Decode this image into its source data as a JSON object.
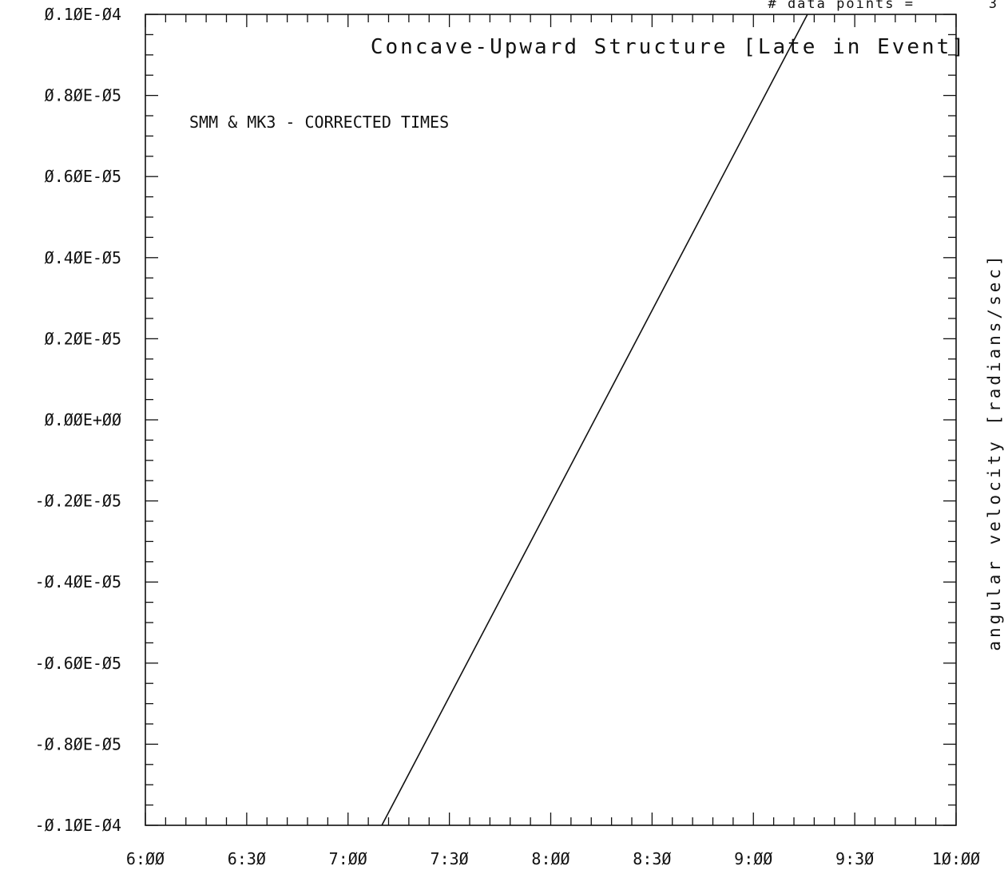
{
  "chart_data": {
    "type": "line",
    "title": "Concave-Upward Structure [Late in Event]",
    "annotation": "SMM & MK3 - CORRECTED TIMES",
    "data_points_label": "# data points =",
    "data_points_value": "3",
    "xlabel": "",
    "ylabel": "angular velocity [radians/sec]",
    "xlim": [
      "6:00",
      "10:00"
    ],
    "ylim": [
      -1e-05,
      1e-05
    ],
    "x_tick_labels": [
      "6:ØØ",
      "6:3Ø",
      "7:ØØ",
      "7:3Ø",
      "8:ØØ",
      "8:3Ø",
      "9:ØØ",
      "9:3Ø",
      "1Ø:ØØ"
    ],
    "y_tick_labels": [
      "Ø.1ØE-Ø4",
      "Ø.8ØE-Ø5",
      "Ø.6ØE-Ø5",
      "Ø.4ØE-Ø5",
      "Ø.2ØE-Ø5",
      "Ø.ØØE+ØØ",
      "-Ø.2ØE-Ø5",
      "-Ø.4ØE-Ø5",
      "-Ø.6ØE-Ø5",
      "-Ø.8ØE-Ø5",
      "-Ø.1ØE-Ø4"
    ],
    "series": [
      {
        "x": [
          "7:10",
          "9:16"
        ],
        "y": [
          -1e-05,
          1e-05
        ]
      }
    ],
    "grid": false,
    "colors": {
      "line": "#111111",
      "axes": "#111111",
      "background": "#ffffff"
    }
  }
}
